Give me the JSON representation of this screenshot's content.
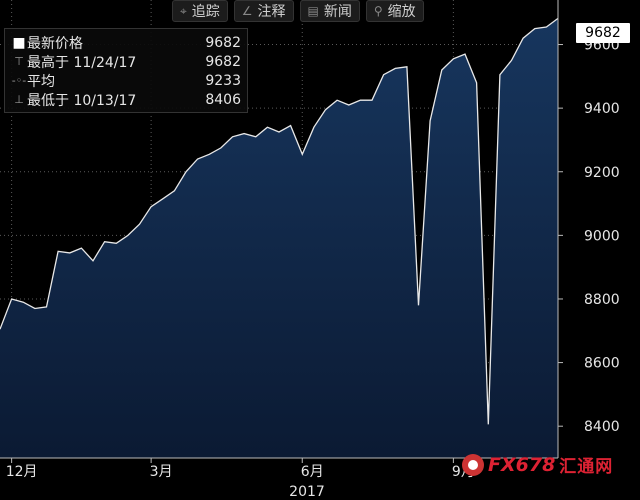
{
  "toolbar": {
    "buttons": [
      {
        "icon": "crosshair-icon",
        "glyph": "⌖",
        "label": "追踪"
      },
      {
        "icon": "pencil-icon",
        "glyph": "∠",
        "label": "注释"
      },
      {
        "icon": "news-icon",
        "glyph": "▤",
        "label": "新闻"
      },
      {
        "icon": "search-icon",
        "glyph": "⚲",
        "label": "缩放"
      }
    ]
  },
  "legend": {
    "rows": [
      {
        "symbol": "■",
        "label": "最新价格",
        "value": "9682"
      },
      {
        "symbol": "⊤",
        "label": "最高于 11/24/17",
        "value": "9682"
      },
      {
        "symbol": "-◦-",
        "label": "平均",
        "value": "9233"
      },
      {
        "symbol": "⊥",
        "label": "最低于 10/13/17",
        "value": "8406"
      }
    ]
  },
  "last_value_badge": "9682",
  "watermark": {
    "brand": "FX678",
    "name": "汇通网"
  },
  "colors": {
    "background": "#000000",
    "area_fill_top": "#17365e",
    "area_fill_bottom": "#0b1a33",
    "line": "#e8e8e8",
    "grid": "#5a5a5a"
  },
  "chart_data": {
    "type": "area",
    "title": "",
    "xlabel": "",
    "ylabel": "",
    "ylim": [
      8300,
      9740
    ],
    "y_ticks": [
      8400,
      8600,
      8800,
      9000,
      9200,
      9400,
      9600
    ],
    "y_tick_labels": [
      "8400",
      "8600",
      "8800",
      "9000",
      "9200",
      "9400",
      "9600"
    ],
    "x_ticks": [
      {
        "index": 1,
        "label": "12月"
      },
      {
        "index": 13,
        "label": "3月"
      },
      {
        "index": 26,
        "label": "6月"
      },
      {
        "index": 39,
        "label": "9月"
      }
    ],
    "x_sublabel": "2017",
    "grid": true,
    "series": [
      {
        "name": "",
        "values": [
          8705,
          8800,
          8790,
          8770,
          8775,
          8950,
          8945,
          8960,
          8920,
          8980,
          8975,
          9000,
          9035,
          9090,
          9115,
          9140,
          9200,
          9240,
          9255,
          9275,
          9310,
          9320,
          9310,
          9340,
          9325,
          9345,
          9255,
          9340,
          9395,
          9425,
          9410,
          9425,
          9425,
          9505,
          9525,
          9530,
          8780,
          9360,
          9520,
          9555,
          9570,
          9480,
          8406,
          9505,
          9550,
          9620,
          9650,
          9655,
          9682
        ]
      }
    ]
  }
}
